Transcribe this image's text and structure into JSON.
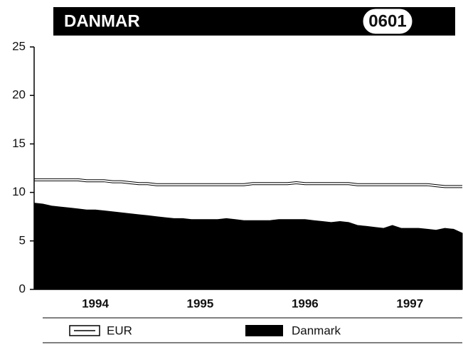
{
  "header": {
    "title": "DANMAR",
    "code": "0601"
  },
  "chart_data": {
    "type": "area",
    "categories": [
      null,
      null,
      null,
      null,
      null,
      null,
      null,
      "1994",
      null,
      null,
      null,
      null,
      null,
      null,
      null,
      null,
      null,
      null,
      null,
      "1995",
      null,
      null,
      null,
      null,
      null,
      null,
      null,
      null,
      null,
      null,
      null,
      "1996",
      null,
      null,
      null,
      null,
      null,
      null,
      null,
      null,
      null,
      null,
      null,
      "1997",
      null,
      null,
      null,
      null,
      null,
      null
    ],
    "series": [
      {
        "name": "EUR",
        "color": "#ffffff",
        "style": "line",
        "values": [
          11.3,
          11.3,
          11.3,
          11.3,
          11.3,
          11.3,
          11.2,
          11.2,
          11.2,
          11.1,
          11.1,
          11.0,
          10.9,
          10.9,
          10.8,
          10.8,
          10.8,
          10.8,
          10.8,
          10.8,
          10.8,
          10.8,
          10.8,
          10.8,
          10.8,
          10.9,
          10.9,
          10.9,
          10.9,
          10.9,
          11.0,
          10.9,
          10.9,
          10.9,
          10.9,
          10.9,
          10.9,
          10.8,
          10.8,
          10.8,
          10.8,
          10.8,
          10.8,
          10.8,
          10.8,
          10.8,
          10.7,
          10.6,
          10.6,
          10.6
        ]
      },
      {
        "name": "Danmark",
        "color": "#000000",
        "style": "area",
        "values": [
          8.9,
          8.8,
          8.6,
          8.5,
          8.4,
          8.3,
          8.2,
          8.2,
          8.1,
          8.0,
          7.9,
          7.8,
          7.7,
          7.6,
          7.5,
          7.4,
          7.3,
          7.3,
          7.2,
          7.2,
          7.2,
          7.2,
          7.3,
          7.2,
          7.1,
          7.1,
          7.1,
          7.1,
          7.2,
          7.2,
          7.2,
          7.2,
          7.1,
          7.0,
          6.9,
          7.0,
          6.9,
          6.6,
          6.5,
          6.4,
          6.3,
          6.6,
          6.3,
          6.3,
          6.3,
          6.2,
          6.1,
          6.3,
          6.2,
          5.8
        ]
      }
    ],
    "ylim": [
      0,
      25
    ],
    "yticks": [
      0,
      5,
      10,
      15,
      20,
      25
    ],
    "grid": false
  }
}
